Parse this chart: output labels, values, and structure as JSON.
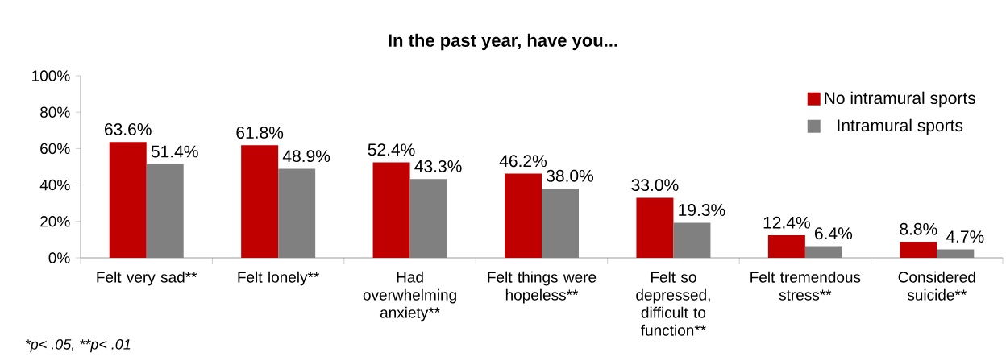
{
  "chart_data": {
    "type": "bar",
    "title": "In the past year, have you...",
    "categories": [
      "Felt very sad**",
      "Felt lonely**",
      "Had overwhelming anxiety**",
      "Felt things were hopeless**",
      "Felt so depressed, difficult to function**",
      "Felt tremendous stress**",
      "Considered suicide**"
    ],
    "series": [
      {
        "name": "No intramural sports",
        "color": "#c00000",
        "values": [
          63.6,
          61.8,
          52.4,
          46.2,
          33.0,
          12.4,
          8.8
        ],
        "value_labels": [
          "63.6%",
          "61.8%",
          "52.4%",
          "46.2%",
          "33.0%",
          "12.4%",
          "8.8%"
        ]
      },
      {
        "name": "Intramural sports",
        "color": "#808080",
        "values": [
          51.4,
          48.9,
          43.3,
          38.0,
          19.3,
          6.4,
          4.7
        ],
        "value_labels": [
          "51.4%",
          "48.9%",
          "43.3%",
          "38.0%",
          "19.3%",
          "6.4%",
          "4.7%"
        ]
      }
    ],
    "ylim": [
      0,
      100
    ],
    "yticks": [
      {
        "value": 0,
        "label": "0%"
      },
      {
        "value": 20,
        "label": "20%"
      },
      {
        "value": 40,
        "label": "40%"
      },
      {
        "value": 60,
        "label": "60%"
      },
      {
        "value": 80,
        "label": "80%"
      },
      {
        "value": 100,
        "label": "100%"
      }
    ],
    "legend": "top right",
    "annotations": [
      "*p< .05, **p< .01"
    ]
  }
}
